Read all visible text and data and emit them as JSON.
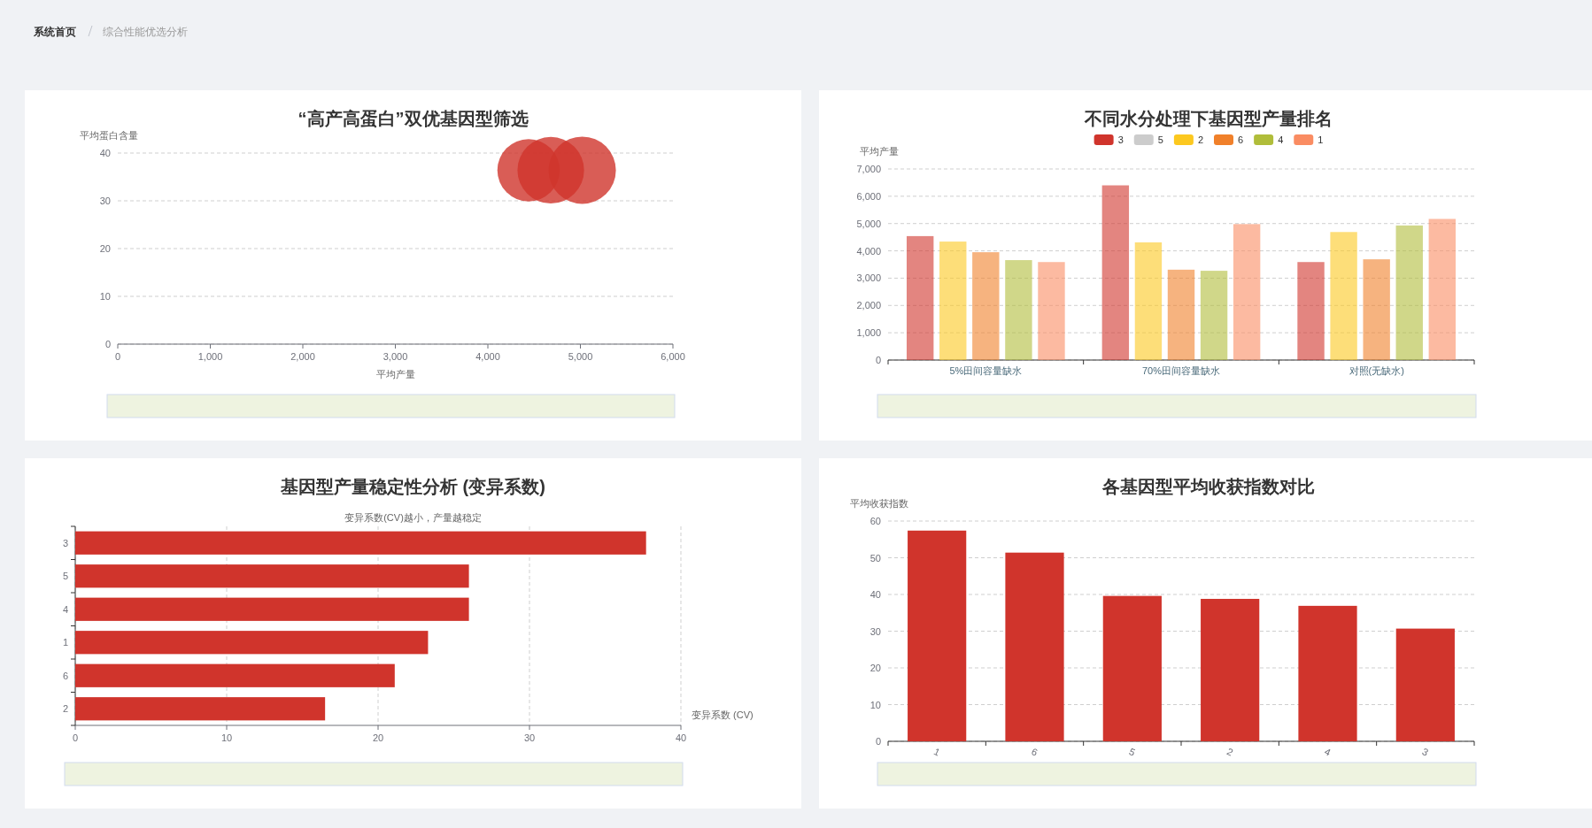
{
  "chart_data": [
    {
      "type": "other",
      "annotations": [
        "系统首页",
        "综合性能优选分析"
      ]
    },
    {
      "type": "bubble",
      "title": "“高产高蛋白”双优基因型筛选",
      "xlabel": "平均产量",
      "ylabel": "平均蛋白含量",
      "color": "#d0342c",
      "x": [
        4440,
        4680,
        5020
      ],
      "values": [
        36.4,
        36.4,
        36.4
      ],
      "sizes": [
        0.86,
        0.98,
        1
      ],
      "xlim": [
        0,
        6000
      ],
      "xticks": [
        0,
        {
          "value": 1000,
          "label": "1,000"
        },
        {
          "value": 2000,
          "label": "2,000"
        },
        {
          "value": 3000,
          "label": "3,000"
        },
        {
          "value": 4000,
          "label": "4,000"
        },
        {
          "value": 5000,
          "label": "5,000"
        },
        {
          "value": 6000,
          "label": "6,000"
        }
      ],
      "ylim": [
        0,
        40
      ],
      "yticks": [
        0,
        10,
        20,
        30,
        40
      ],
      "grid": "y"
    },
    {
      "type": "bar",
      "title": "不同水分处理下基因型产量排名",
      "ylabel": "平均产量",
      "categories": [
        "5%田间容量缺水",
        "70%田间容量缺水",
        "对照(无缺水)"
      ],
      "series": [
        {
          "name": "3",
          "color": "#d0342c",
          "values": [
            4540,
            6400,
            3590
          ]
        },
        {
          "name": "5",
          "color": "#cccccc",
          "values": [
            null,
            null,
            null
          ]
        },
        {
          "name": "2",
          "color": "#fcc81f",
          "values": [
            4340,
            4310,
            4690
          ]
        },
        {
          "name": "6",
          "color": "#f0802a",
          "values": [
            3950,
            3310,
            3690
          ]
        },
        {
          "name": "4",
          "color": "#b0bd3a",
          "values": [
            3660,
            3270,
            4930
          ]
        },
        {
          "name": "1",
          "color": "#fa8c62",
          "values": [
            3590,
            4980,
            5170
          ]
        }
      ],
      "ylim": [
        0,
        7000
      ],
      "yticks": [
        0,
        {
          "value": 1000,
          "label": "1,000"
        },
        {
          "value": 2000,
          "label": "2,000"
        },
        {
          "value": 3000,
          "label": "3,000"
        },
        {
          "value": 4000,
          "label": "4,000"
        },
        {
          "value": 5000,
          "label": "5,000"
        },
        {
          "value": 6000,
          "label": "6,000"
        },
        {
          "value": 7000,
          "label": "7,000"
        }
      ],
      "grid": "y",
      "legend": "top"
    },
    {
      "type": "bar",
      "orientation": "horizontal",
      "title": "基因型产量稳定性分析 (变异系数)",
      "subtitle": "变异系数(CV)越小，产量越稳定",
      "xlabel": "变异系数 (CV)",
      "color": "#d0342c",
      "categories": [
        "3",
        "5",
        "4",
        "1",
        "6",
        "2"
      ],
      "values": [
        37.7,
        26.0,
        26.0,
        23.3,
        21.1,
        16.5
      ],
      "xlim": [
        0,
        40
      ],
      "xticks": [
        0,
        10,
        20,
        30,
        40
      ],
      "grid": "x"
    },
    {
      "type": "bar",
      "title": "各基因型平均收获指数对比",
      "ylabel": "平均收获指数",
      "color": "#d0342c",
      "categories": [
        "1",
        "6",
        "5",
        "2",
        "4",
        "3"
      ],
      "values": [
        57.4,
        51.4,
        39.6,
        38.8,
        36.9,
        30.7
      ],
      "ylim": [
        0,
        60
      ],
      "yticks": [
        0,
        10,
        20,
        30,
        40,
        50,
        60
      ],
      "grid": "y"
    }
  ]
}
